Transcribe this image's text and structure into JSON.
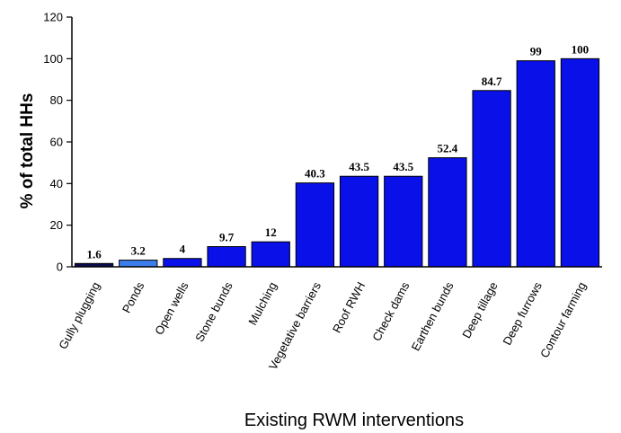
{
  "chart_data": {
    "type": "bar",
    "title": "",
    "xlabel": "Existing RWM interventions",
    "ylabel": "% of total HHs",
    "ylim": [
      0,
      120
    ],
    "yticks": [
      0,
      20,
      40,
      60,
      80,
      100,
      120
    ],
    "grid": false,
    "categories": [
      "Gully plugging",
      "Ponds",
      "Open wells",
      "Stone bunds",
      "Mulching",
      "Vegetative barriers",
      "Roof RWH",
      "Check dams",
      "Earthen bunds",
      "Deep tillage",
      "Deep furrows",
      "Contour farming"
    ],
    "values": [
      1.6,
      3.2,
      4,
      9.7,
      12,
      40.3,
      43.5,
      43.5,
      52.4,
      84.7,
      99,
      100
    ],
    "data_labels": [
      "1.6",
      "3.2",
      "4",
      "9.7",
      "12",
      "40.3",
      "43.5",
      "43.5",
      "52.4",
      "84.7",
      "99",
      "100"
    ],
    "colors": [
      "#0a0a50",
      "#3b7dea",
      "#0a10e8",
      "#0a10e8",
      "#0a10e8",
      "#0a10e8",
      "#0a10e8",
      "#0a10e8",
      "#0a10e8",
      "#0a10e8",
      "#0a10e8",
      "#0a10e8"
    ]
  }
}
